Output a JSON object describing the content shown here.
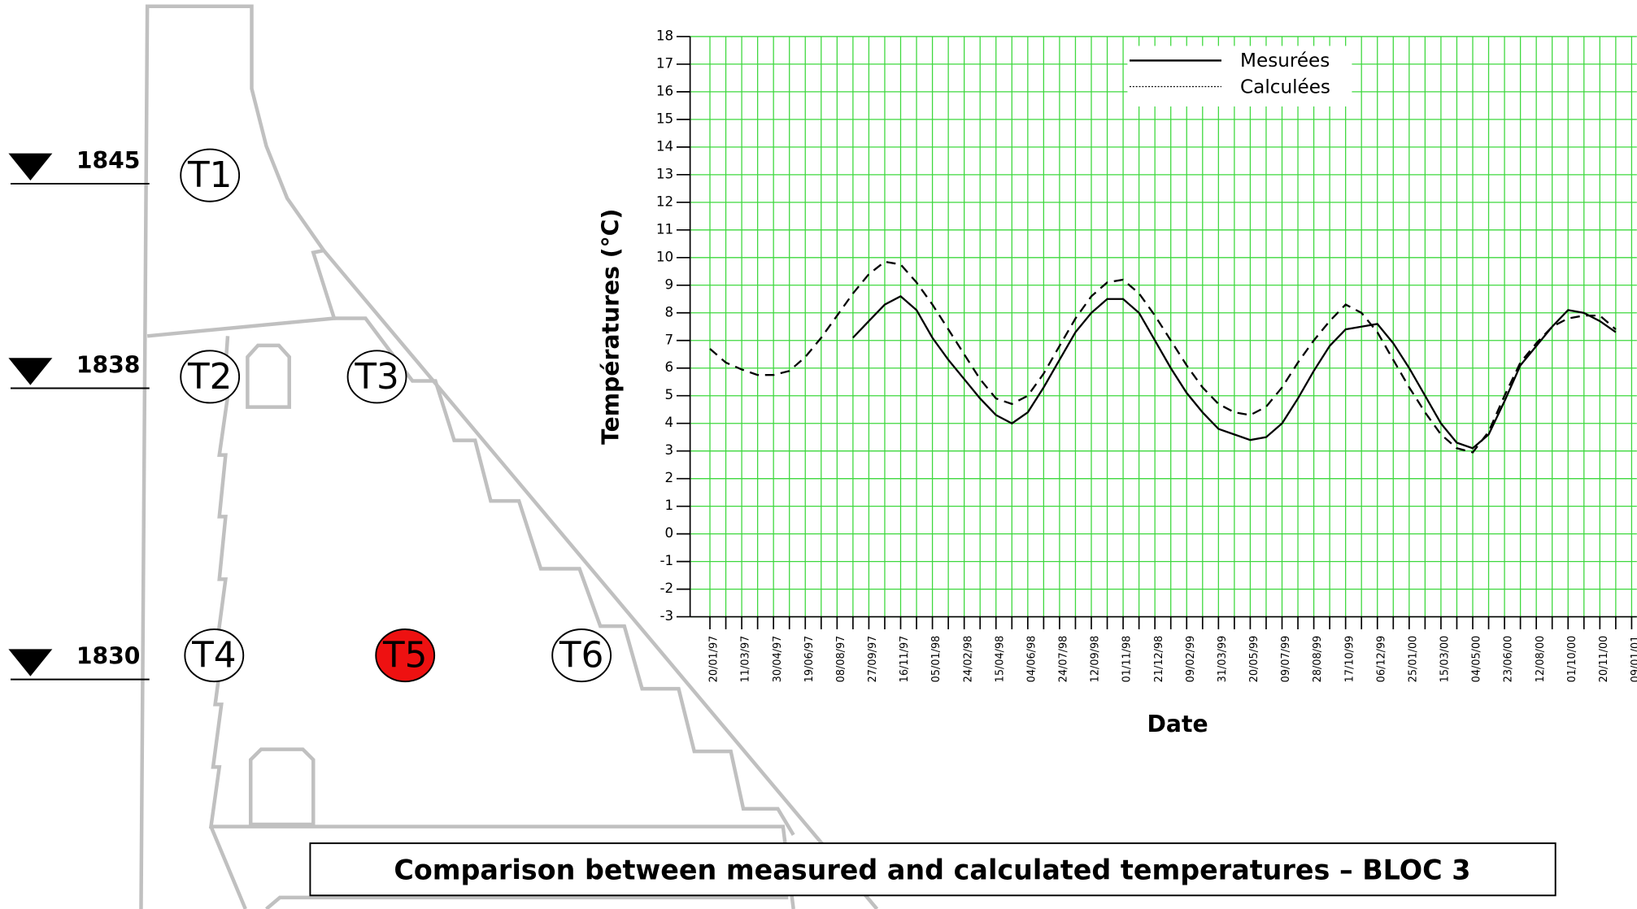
{
  "caption": "Comparison  between measured and calculated temperatures – BLOC 3",
  "levels": [
    "1845",
    "1838",
    "1830"
  ],
  "sensors": [
    {
      "label": "T1",
      "color": "#ffffff"
    },
    {
      "label": "T2",
      "color": "#ffffff"
    },
    {
      "label": "T3",
      "color": "#ffffff"
    },
    {
      "label": "T4",
      "color": "#ffffff"
    },
    {
      "label": "T5",
      "color": "#ee1111"
    },
    {
      "label": "T6",
      "color": "#ffffff"
    }
  ],
  "chart_data": {
    "type": "line",
    "xlabel": "Date",
    "ylabel": "Températures (°C)",
    "categories": [
      "20/01/97",
      null,
      "11/03/97",
      null,
      "30/04/97",
      null,
      "19/06/97",
      null,
      "08/08/97",
      null,
      "27/09/97",
      null,
      "16/11/97",
      null,
      "05/01/98",
      null,
      "24/02/98",
      null,
      "15/04/98",
      null,
      "04/06/98",
      null,
      "24/07/98",
      null,
      "12/09/98",
      null,
      "01/11/98",
      null,
      "21/12/98",
      null,
      "09/02/99",
      null,
      "31/03/99",
      null,
      "20/05/99",
      null,
      "09/07/99",
      null,
      "28/08/99",
      null,
      "17/10/99",
      null,
      "06/12/99",
      null,
      "25/01/00",
      null,
      "15/03/00",
      null,
      "04/05/00",
      null,
      "23/06/00",
      null,
      "12/08/00",
      null,
      "01/10/00",
      null,
      "20/11/00",
      null,
      "09/01/01"
    ],
    "series": [
      {
        "name": "Mesurées",
        "color": "#000000",
        "style": "solid",
        "values": [
          null,
          null,
          null,
          null,
          null,
          null,
          null,
          null,
          null,
          7.1,
          7.7,
          8.3,
          8.6,
          8.1,
          7.1,
          6.3,
          5.6,
          4.9,
          4.3,
          4.0,
          4.4,
          5.3,
          6.3,
          7.3,
          8.0,
          8.5,
          8.5,
          8.0,
          7.0,
          6.0,
          5.1,
          4.4,
          3.8,
          3.6,
          3.4,
          3.5,
          4.0,
          4.9,
          5.9,
          6.8,
          7.4,
          7.5,
          7.6,
          6.9,
          6.0,
          5.0,
          4.0,
          3.3,
          3.1,
          3.6,
          4.8,
          6.1,
          6.8,
          7.5,
          8.1,
          8.0,
          7.7,
          7.3,
          null
        ]
      },
      {
        "name": "Calculées",
        "color": "#000000",
        "style": "dashed",
        "values": [
          6.7,
          6.2,
          5.95,
          5.75,
          5.75,
          5.9,
          6.4,
          7.1,
          7.9,
          8.7,
          9.4,
          9.85,
          9.75,
          9.1,
          8.3,
          7.4,
          6.5,
          5.6,
          4.9,
          4.7,
          5.0,
          5.8,
          6.8,
          7.8,
          8.6,
          9.1,
          9.2,
          8.7,
          7.9,
          7.0,
          6.1,
          5.3,
          4.7,
          4.4,
          4.3,
          4.6,
          5.3,
          6.2,
          7.0,
          7.7,
          8.3,
          8.0,
          7.3,
          6.3,
          5.3,
          4.4,
          3.6,
          3.1,
          2.95,
          3.7,
          5.0,
          6.2,
          6.9,
          7.5,
          7.8,
          7.9,
          7.9,
          7.4,
          null
        ]
      }
    ],
    "ylim": [
      -3,
      18
    ],
    "yticks": [
      -3,
      -2,
      -1,
      0,
      1,
      2,
      3,
      4,
      5,
      6,
      7,
      8,
      9,
      10,
      11,
      12,
      13,
      14,
      15,
      16,
      17,
      18
    ],
    "grid": true,
    "legend": "top"
  }
}
